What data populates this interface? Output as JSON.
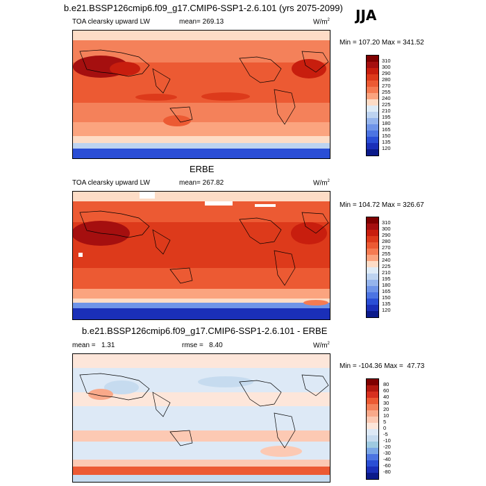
{
  "header": {
    "title": "b.e21.BSSP126cmip6.f09_g17.CMIP6-SSP1-2.6.101 (yrs 2075-2099)",
    "season": "JJA"
  },
  "panels": [
    {
      "id": "model",
      "heading": "",
      "left_label": "TOA clearsky upward LW",
      "mid_label": "mean= 269.13",
      "units": "W/m",
      "units_sup": "2",
      "minmax": "Min = 107.20 Max = 341.52",
      "levels": [
        "310",
        "300",
        "290",
        "280",
        "270",
        "255",
        "240",
        "225",
        "210",
        "195",
        "180",
        "165",
        "150",
        "135",
        "120"
      ],
      "colors": [
        "#7f0000",
        "#a50f0f",
        "#c81e0e",
        "#dd3a1b",
        "#ec5a33",
        "#f57b52",
        "#fba47f",
        "#fddcc6",
        "#deebf7",
        "#bdd3f0",
        "#95b4ec",
        "#6f94e8",
        "#4c74e2",
        "#2a4ed5",
        "#1a2fb8",
        "#0b1a8a"
      ]
    },
    {
      "id": "obs",
      "heading": "ERBE",
      "left_label": "TOA clearsky upward LW",
      "mid_label": "mean= 267.82",
      "units": "W/m",
      "units_sup": "2",
      "minmax": "Min = 104.72 Max = 326.67",
      "levels": [
        "310",
        "300",
        "290",
        "280",
        "270",
        "255",
        "240",
        "225",
        "210",
        "195",
        "180",
        "165",
        "150",
        "135",
        "120"
      ],
      "colors": [
        "#7f0000",
        "#a50f0f",
        "#c81e0e",
        "#dd3a1b",
        "#ec5a33",
        "#f57b52",
        "#fba47f",
        "#fddcc6",
        "#deebf7",
        "#bdd3f0",
        "#95b4ec",
        "#6f94e8",
        "#4c74e2",
        "#2a4ed5",
        "#1a2fb8",
        "#0b1a8a"
      ]
    },
    {
      "id": "diff",
      "heading": "b.e21.BSSP126cmip6.f09_g17.CMIP6-SSP1-2.6.101 - ERBE",
      "left_label": "mean =   1.31",
      "mid_label": "rmse =   8.40",
      "units": "W/m",
      "units_sup": "2",
      "minmax": "Min = -104.36 Max =  47.73",
      "levels": [
        "80",
        "60",
        "40",
        "30",
        "20",
        "10",
        "5",
        "0",
        "-5",
        "-10",
        "-20",
        "-30",
        "-40",
        "-60",
        "-80"
      ],
      "colors": [
        "#7f0000",
        "#b2180f",
        "#d7301f",
        "#ec5a33",
        "#f4815a",
        "#f9a98a",
        "#fcc9b3",
        "#fde6da",
        "#dde9f6",
        "#c6dbef",
        "#9ecae1",
        "#7aa6e6",
        "#4c74e2",
        "#2a4ed5",
        "#1a2fb8",
        "#0b1a8a"
      ]
    }
  ]
}
